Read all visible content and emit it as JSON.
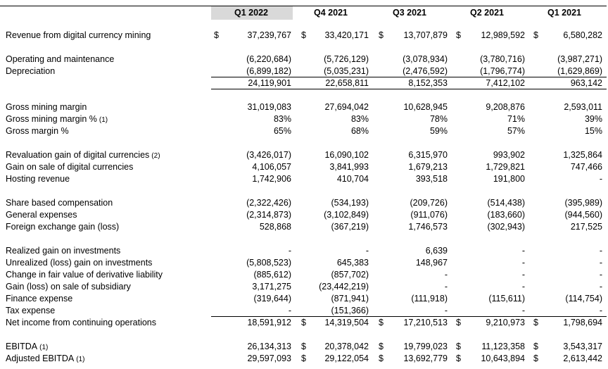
{
  "table": {
    "columns": [
      "Q1 2022",
      "Q4 2021",
      "Q3 2021",
      "Q2 2021",
      "Q1 2021"
    ],
    "sections": [
      [
        {
          "label": "Revenue from digital currency mining",
          "currency": [
            "$",
            "$",
            "$",
            "$",
            "$"
          ],
          "values": [
            "37,239,767",
            "33,420,171",
            "13,707,879",
            "12,989,592",
            "6,580,282"
          ]
        }
      ],
      [
        {
          "label": "Operating and maintenance",
          "values": [
            "(6,220,684)",
            "(5,726,129)",
            "(3,078,934)",
            "(3,780,716)",
            "(3,987,271)"
          ]
        },
        {
          "label": "Depreciation",
          "values": [
            "(6,899,182)",
            "(5,035,231)",
            "(2,476,592)",
            "(1,796,774)",
            "(1,629,869)"
          ]
        },
        {
          "values": [
            "24,119,901",
            "22,658,811",
            "8,152,353",
            "7,412,102",
            "963,142"
          ]
        }
      ],
      [
        {
          "label": "Gross mining margin",
          "values": [
            "31,019,083",
            "27,694,042",
            "10,628,945",
            "9,208,876",
            "2,593,011"
          ]
        },
        {
          "label": "Gross mining margin %",
          "note": "(1)",
          "values": [
            "83%",
            "83%",
            "78%",
            "71%",
            "39%"
          ]
        },
        {
          "label": "Gross margin %",
          "values": [
            "65%",
            "68%",
            "59%",
            "57%",
            "15%"
          ]
        }
      ],
      [
        {
          "label": "Revaluation gain of digital currencies",
          "note": "(2)",
          "values": [
            "(3,426,017)",
            "16,090,102",
            "6,315,970",
            "993,902",
            "1,325,864"
          ]
        },
        {
          "label": "Gain on sale of digital currencies",
          "values": [
            "4,106,057",
            "3,841,993",
            "1,679,213",
            "1,729,821",
            "747,466"
          ]
        },
        {
          "label": "Hosting revenue",
          "values": [
            "1,742,906",
            "410,704",
            "393,518",
            "191,800",
            "-"
          ]
        }
      ],
      [
        {
          "label": "Share based compensation",
          "values": [
            "(2,322,426)",
            "(534,193)",
            "(209,726)",
            "(514,438)",
            "(395,989)"
          ]
        },
        {
          "label": "General expenses",
          "values": [
            "(2,314,873)",
            "(3,102,849)",
            "(911,076)",
            "(183,660)",
            "(944,560)"
          ]
        },
        {
          "label": "Foreign exchange gain (loss)",
          "values": [
            "528,868",
            "(367,219)",
            "1,746,573",
            "(302,943)",
            "217,525"
          ]
        }
      ],
      [
        {
          "label": "Realized gain on investments",
          "values": [
            "-",
            "-",
            "6,639",
            "-",
            "-"
          ]
        },
        {
          "label": "Unrealized (loss) gain on investments",
          "values": [
            "(5,808,523)",
            "645,383",
            "148,967",
            "-",
            "-"
          ]
        },
        {
          "label": "Change in fair value of derivative liability",
          "values": [
            "(885,612)",
            "(857,702)",
            "-",
            "-",
            "-"
          ]
        },
        {
          "label": "Gain (loss) on sale of subsidiary",
          "values": [
            "3,171,275",
            "(23,442,219)",
            "-",
            "-",
            "-"
          ]
        },
        {
          "label": "Finance expense",
          "values": [
            "(319,644)",
            "(871,941)",
            "(111,918)",
            "(115,611)",
            "(114,754)"
          ]
        },
        {
          "label": "Tax expense",
          "values": [
            "-",
            "(151,366)",
            "-",
            "-",
            "-"
          ]
        },
        {
          "label": "Net income from continuing operations",
          "currency": [
            null,
            "$",
            "$",
            "$",
            "$"
          ],
          "values": [
            "18,591,912",
            "14,319,504",
            "17,210,513",
            "9,210,973",
            "1,798,694"
          ]
        }
      ],
      [
        {
          "label": "EBITDA",
          "note": "(1)",
          "currency": [
            null,
            "$",
            "$",
            "$",
            "$"
          ],
          "values": [
            "26,134,313",
            "20,378,042",
            "19,799,023",
            "11,123,358",
            "3,543,317"
          ]
        },
        {
          "label": "Adjusted EBITDA",
          "note": "(1)",
          "currency": [
            null,
            "$",
            "$",
            "$",
            "$"
          ],
          "values": [
            "29,597,093",
            "29,122,054",
            "13,692,779",
            "10,643,894",
            "2,613,442"
          ]
        }
      ]
    ]
  }
}
